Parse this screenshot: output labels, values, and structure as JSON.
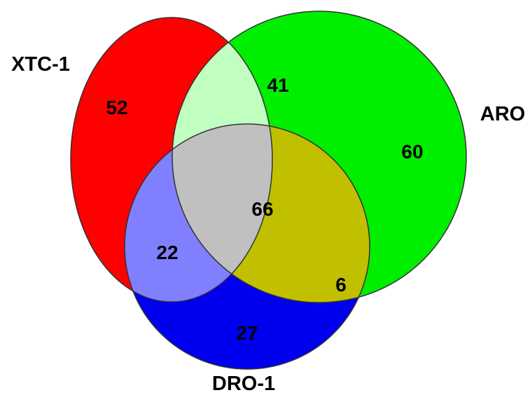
{
  "diagram": {
    "type": "venn-3",
    "sets": {
      "xtc1": {
        "label": "XTC-1",
        "color": "#ff0000"
      },
      "aro": {
        "label": "ARO",
        "color": "#00ee00"
      },
      "dro1": {
        "label": "DRO-1",
        "color": "#0000ee"
      }
    },
    "regions": {
      "xtc1_only": {
        "count": "52",
        "color": "#ff0000"
      },
      "aro_only": {
        "count": "60",
        "color": "#00ee00"
      },
      "dro1_only": {
        "count": "27",
        "color": "#0000ee"
      },
      "xtc1_aro": {
        "count": "41",
        "color": "#c0ffc0"
      },
      "xtc1_dro1": {
        "count": "22",
        "color": "#8080ff"
      },
      "aro_dro1": {
        "count": "6",
        "color": "#c0c000"
      },
      "all_three": {
        "count": "66",
        "color": "#c0c0c0"
      }
    }
  }
}
